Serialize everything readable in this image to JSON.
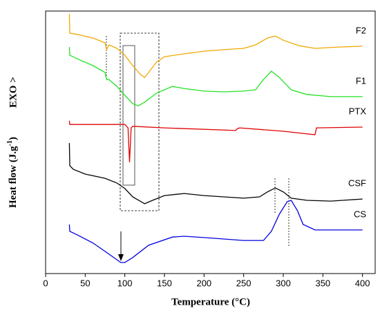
{
  "chart_data": {
    "type": "line",
    "x_label": "Temperature (°C)",
    "y_label": [
      "Heat flow (J.g",
      "-1",
      ")"
    ],
    "exo_label": "EXO >",
    "xlim": [
      0,
      416
    ],
    "xticks": [
      0,
      50,
      100,
      150,
      200,
      250,
      300,
      350,
      400
    ],
    "ylim": [
      0,
      100
    ],
    "series": [
      {
        "name": "F2",
        "color": "#f0a800",
        "x": [
          30,
          30.5,
          40,
          60,
          75,
          77,
          80,
          90,
          100,
          110,
          120,
          125,
          130,
          140,
          150,
          175,
          200,
          225,
          250,
          265,
          280,
          290,
          300,
          320,
          340,
          370,
          400
        ],
        "values": [
          98.9,
          91.6,
          91.1,
          89.7,
          87.9,
          85.3,
          87.1,
          85.8,
          83.2,
          79.2,
          75.8,
          74.7,
          76.6,
          80.5,
          82.6,
          83.7,
          84.7,
          85.3,
          85.8,
          87.1,
          89.7,
          90.5,
          88.9,
          86.8,
          85.8,
          86.3,
          86.6
        ]
      },
      {
        "name": "F1",
        "color": "#22e322",
        "x": [
          30,
          30.5,
          40,
          50,
          60,
          75,
          77,
          80,
          90,
          100,
          110,
          117,
          125,
          140,
          160,
          175,
          200,
          225,
          250,
          265,
          275,
          285,
          295,
          310,
          330,
          360,
          400
        ],
        "values": [
          86.3,
          83.2,
          81.8,
          80.5,
          79.2,
          76.6,
          73.9,
          73.9,
          71.3,
          67.9,
          64.7,
          63.9,
          65.3,
          68.7,
          71.3,
          70.5,
          69.5,
          69.2,
          69.5,
          70.0,
          73.9,
          77.1,
          74.7,
          70.0,
          68.2,
          67.4,
          67.4
        ]
      },
      {
        "name": "PTX",
        "color": "#e00000",
        "x": [
          30,
          30.5,
          100,
          104,
          106,
          108,
          110,
          150,
          240,
          242,
          245,
          300,
          340,
          342,
          400
        ],
        "values": [
          58.2,
          56.8,
          56.8,
          55.5,
          42.4,
          55.5,
          56.1,
          55.5,
          54.5,
          55.2,
          55.5,
          54.2,
          52.9,
          55.5,
          55.8
        ]
      },
      {
        "name": "CSF",
        "color": "#000000",
        "x": [
          30,
          30.5,
          35,
          50,
          75,
          90,
          100,
          110,
          125,
          135,
          150,
          175,
          200,
          250,
          270,
          280,
          290,
          300,
          310,
          330,
          360,
          400
        ],
        "values": [
          49.7,
          41.1,
          39.7,
          37.9,
          36.3,
          34.5,
          32.4,
          29.2,
          26.6,
          27.9,
          29.7,
          30.5,
          29.7,
          28.7,
          29.2,
          31.1,
          32.6,
          31.1,
          28.7,
          27.9,
          27.6,
          28.4
        ]
      },
      {
        "name": "CS",
        "color": "#0000e0",
        "x": [
          30,
          30.5,
          40,
          60,
          80,
          95,
          100,
          110,
          130,
          160,
          175,
          200,
          250,
          275,
          285,
          295,
          305,
          310,
          318,
          325,
          340,
          400
        ],
        "values": [
          18.7,
          16.1,
          14.7,
          11.6,
          7.4,
          4.2,
          4.2,
          6.1,
          10.8,
          13.9,
          14.2,
          13.7,
          12.6,
          12.6,
          16.1,
          22.6,
          27.4,
          27.9,
          23.9,
          18.7,
          16.6,
          16.6
        ]
      }
    ]
  }
}
